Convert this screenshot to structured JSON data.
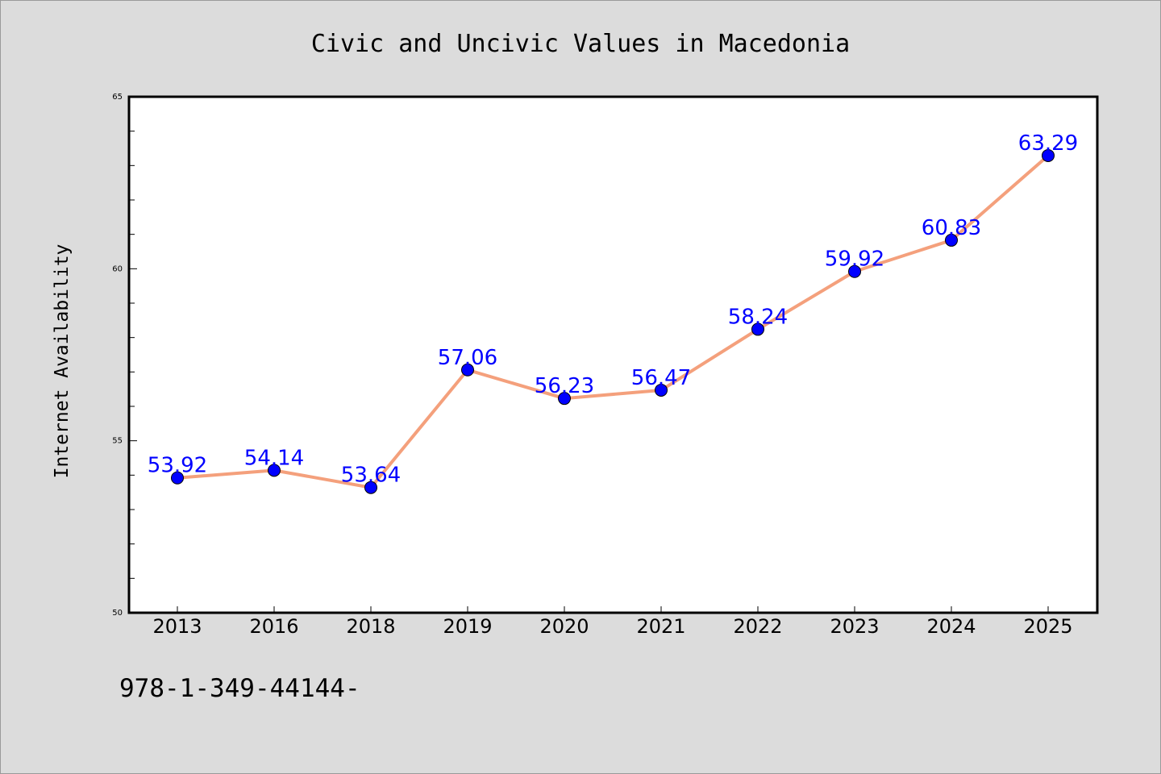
{
  "chart_data": {
    "type": "line",
    "title": "Civic and Uncivic Values in Macedonia",
    "xlabel": "",
    "ylabel": "Internet Availability",
    "categories": [
      "2013",
      "2016",
      "2018",
      "2019",
      "2020",
      "2021",
      "2022",
      "2023",
      "2024",
      "2025"
    ],
    "series": [
      {
        "values": [
          53.92,
          54.14,
          53.64,
          57.06,
          56.23,
          56.47,
          58.24,
          59.92,
          60.83,
          63.29
        ]
      }
    ],
    "data_labels": [
      "53.92",
      "54.14",
      "53.64",
      "57.06",
      "56.23",
      "56.47",
      "58.24",
      "59.92",
      "60.83",
      "63.29"
    ],
    "ylim": [
      50,
      65
    ],
    "yticks": [
      "50",
      "55",
      "60",
      "65"
    ],
    "grid": false,
    "colors": {
      "line": "#f4a07c",
      "marker": "#0000ff",
      "labels": "#0000ff",
      "background": "#dcdcdc",
      "plot_background": "#ffffff"
    }
  },
  "footer": {
    "text": "978-1-349-44144-"
  }
}
